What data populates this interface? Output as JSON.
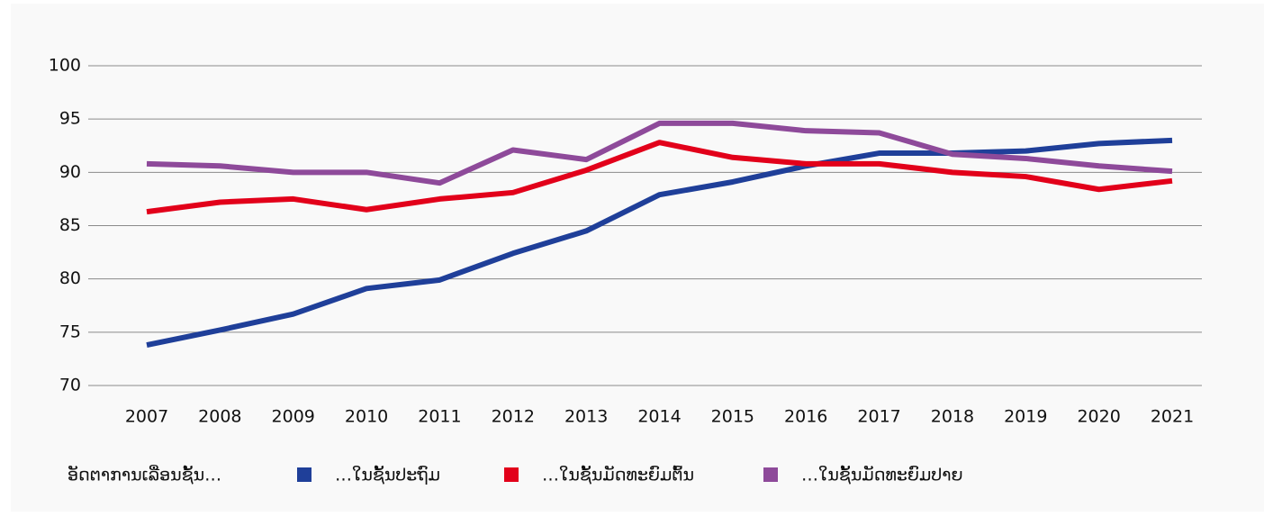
{
  "chart_data": {
    "type": "line",
    "categories": [
      "2007",
      "2008",
      "2009",
      "2010",
      "2011",
      "2012",
      "2013",
      "2014",
      "2015",
      "2016",
      "2017",
      "2018",
      "2019",
      "2020",
      "2021"
    ],
    "legend_title": "ອັດຕາການເລື່ອນຊັ້ນ…",
    "series": [
      {
        "name": "…ໃນຊັ້ນປະຖົມ",
        "color": "#1f3f99",
        "values": [
          73.8,
          75.2,
          76.7,
          79.1,
          79.9,
          82.4,
          84.5,
          87.9,
          89.1,
          90.6,
          91.8,
          91.8,
          92.0,
          92.7,
          93.0
        ]
      },
      {
        "name": "…ໃນຊັ້ນມັດທະຍົມຕົ້ນ",
        "color": "#e2001a",
        "values": [
          86.3,
          87.2,
          87.5,
          86.5,
          87.5,
          88.1,
          90.2,
          92.8,
          91.4,
          90.8,
          90.8,
          90.0,
          89.6,
          88.4,
          89.2
        ]
      },
      {
        "name": "…ໃນຊັ້ນມັດທະຍົມປາຍ",
        "color": "#8e4a9a",
        "values": [
          90.8,
          90.6,
          90.0,
          90.0,
          89.0,
          92.1,
          91.2,
          94.6,
          94.6,
          93.9,
          93.7,
          91.7,
          91.3,
          90.6,
          90.1
        ]
      }
    ],
    "ylim": [
      70,
      100
    ],
    "yticks": [
      70,
      75,
      80,
      85,
      90,
      95,
      100
    ],
    "grid": true
  }
}
